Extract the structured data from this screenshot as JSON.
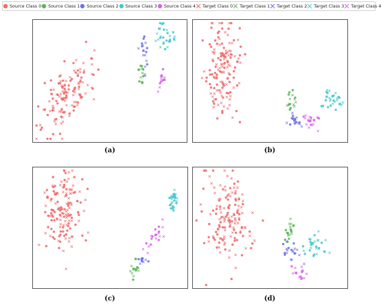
{
  "colors": {
    "class0": "#f06c6c",
    "class1": "#5ab65a",
    "class2": "#6f70ea",
    "class3": "#45c9cf",
    "class4": "#d565e6"
  },
  "legend": {
    "entries": [
      {
        "label": "Source Class 0",
        "marker": "circle",
        "class": 0
      },
      {
        "label": "Source Class 1",
        "marker": "circle",
        "class": 1
      },
      {
        "label": "Source Class 2",
        "marker": "circle",
        "class": 2
      },
      {
        "label": "Source Class 3",
        "marker": "circle",
        "class": 3
      },
      {
        "label": "Source Class 4",
        "marker": "circle",
        "class": 4
      },
      {
        "label": "Target Class 0",
        "marker": "x",
        "class": 0
      },
      {
        "label": "Target Class 1",
        "marker": "x",
        "class": 1
      },
      {
        "label": "Target Class 2",
        "marker": "x",
        "class": 2
      },
      {
        "label": "Target Class 3",
        "marker": "x",
        "class": 3
      },
      {
        "label": "Target Class 4",
        "marker": "x",
        "class": 4
      }
    ],
    "placement": "top"
  },
  "chart_data": [
    {
      "type": "scatter",
      "caption": "(a)",
      "axes": "none",
      "grid": false,
      "xlim": [
        0,
        1
      ],
      "ylim": [
        0,
        1
      ],
      "clusters": [
        {
          "class": 0,
          "cx": 0.22,
          "cy": 0.38,
          "sx": 0.075,
          "sy": 0.17,
          "rot": -0.35,
          "n_source": 70,
          "n_target": 70
        },
        {
          "class": 1,
          "cx": 0.71,
          "cy": 0.58,
          "sx": 0.012,
          "sy": 0.035,
          "rot": 0,
          "n_source": 8,
          "n_target": 6
        },
        {
          "class": 2,
          "cx": 0.72,
          "cy": 0.78,
          "sx": 0.018,
          "sy": 0.075,
          "rot": 0,
          "n_source": 8,
          "n_target": 9
        },
        {
          "class": 3,
          "cx": 0.87,
          "cy": 0.86,
          "sx": 0.03,
          "sy": 0.06,
          "rot": 0.3,
          "n_source": 15,
          "n_target": 15
        },
        {
          "class": 4,
          "cx": 0.85,
          "cy": 0.51,
          "sx": 0.014,
          "sy": 0.035,
          "rot": 0,
          "n_source": 8,
          "n_target": 6
        }
      ]
    },
    {
      "type": "scatter",
      "caption": "(b)",
      "axes": "none",
      "grid": false,
      "xlim": [
        0,
        1
      ],
      "ylim": [
        0,
        1
      ],
      "clusters": [
        {
          "class": 0,
          "cx": 0.19,
          "cy": 0.58,
          "sx": 0.06,
          "sy": 0.22,
          "rot": 0,
          "n_source": 75,
          "n_target": 75
        },
        {
          "class": 1,
          "cx": 0.65,
          "cy": 0.34,
          "sx": 0.015,
          "sy": 0.05,
          "rot": 0,
          "n_source": 8,
          "n_target": 8
        },
        {
          "class": 2,
          "cx": 0.68,
          "cy": 0.17,
          "sx": 0.03,
          "sy": 0.035,
          "rot": 0,
          "n_source": 8,
          "n_target": 12
        },
        {
          "class": 3,
          "cx": 0.91,
          "cy": 0.34,
          "sx": 0.03,
          "sy": 0.045,
          "rot": 0,
          "n_source": 15,
          "n_target": 15
        },
        {
          "class": 4,
          "cx": 0.77,
          "cy": 0.17,
          "sx": 0.03,
          "sy": 0.045,
          "rot": 0,
          "n_source": 8,
          "n_target": 12
        }
      ]
    },
    {
      "type": "scatter",
      "caption": "(c)",
      "axes": "none",
      "grid": false,
      "xlim": [
        0,
        1
      ],
      "ylim": [
        0,
        1
      ],
      "clusters": [
        {
          "class": 0,
          "cx": 0.18,
          "cy": 0.63,
          "sx": 0.06,
          "sy": 0.17,
          "rot": 0,
          "n_source": 75,
          "n_target": 75
        },
        {
          "class": 1,
          "cx": 0.66,
          "cy": 0.13,
          "sx": 0.014,
          "sy": 0.055,
          "rot": 0,
          "n_source": 8,
          "n_target": 8
        },
        {
          "class": 2,
          "cx": 0.71,
          "cy": 0.22,
          "sx": 0.015,
          "sy": 0.025,
          "rot": 0,
          "n_source": 6,
          "n_target": 6
        },
        {
          "class": 3,
          "cx": 0.92,
          "cy": 0.75,
          "sx": 0.018,
          "sy": 0.05,
          "rot": 0,
          "n_source": 15,
          "n_target": 15
        },
        {
          "class": 4,
          "cx": 0.8,
          "cy": 0.43,
          "sx": 0.025,
          "sy": 0.07,
          "rot": -0.5,
          "n_source": 10,
          "n_target": 10
        }
      ]
    },
    {
      "type": "scatter",
      "caption": "(d)",
      "axes": "none",
      "grid": false,
      "xlim": [
        0,
        1
      ],
      "ylim": [
        0,
        1
      ],
      "clusters": [
        {
          "class": 0,
          "cx": 0.22,
          "cy": 0.57,
          "sx": 0.08,
          "sy": 0.2,
          "rot": 0,
          "n_source": 75,
          "n_target": 75
        },
        {
          "class": 1,
          "cx": 0.63,
          "cy": 0.48,
          "sx": 0.02,
          "sy": 0.06,
          "rot": 0,
          "n_source": 10,
          "n_target": 8
        },
        {
          "class": 2,
          "cx": 0.64,
          "cy": 0.31,
          "sx": 0.035,
          "sy": 0.05,
          "rot": 0,
          "n_source": 8,
          "n_target": 12
        },
        {
          "class": 3,
          "cx": 0.81,
          "cy": 0.35,
          "sx": 0.035,
          "sy": 0.06,
          "rot": 0,
          "n_source": 15,
          "n_target": 15
        },
        {
          "class": 4,
          "cx": 0.69,
          "cy": 0.12,
          "sx": 0.035,
          "sy": 0.03,
          "rot": 0,
          "n_source": 6,
          "n_target": 10
        }
      ]
    }
  ]
}
